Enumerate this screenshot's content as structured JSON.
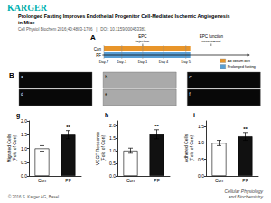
{
  "logo": {
    "text": "KARGER",
    "color": "#00b0b0"
  },
  "title": [
    "Prolonged Fasting Improves Endothelial Progenitor Cell-Mediated Ischemic Angiogenesis",
    "in Mice"
  ],
  "subtitle": "Cell Physiol Biochem 2016;40:4803-1706   |   DOI: 10.1159/000453381",
  "panels": [
    "A",
    "B"
  ],
  "schematic": {
    "rows": [
      "Con",
      "PF"
    ],
    "days": [
      "Day-7",
      "Day-1",
      "Day 1",
      "Day 4",
      "Day 5"
    ],
    "events": [
      [
        "EPC",
        "injection"
      ],
      [
        "EPC function",
        "assessment"
      ]
    ],
    "series": [
      {
        "name": "Ad libitum diet",
        "color": "#e8952a"
      },
      {
        "name": "Prolonged fasting",
        "color": "#5a9fd4"
      }
    ]
  },
  "images": [
    "a",
    "b",
    "c",
    "d",
    "e",
    "f"
  ],
  "chart_data": [
    {
      "type": "bar",
      "title": "g",
      "categories": [
        "Con",
        "PF"
      ],
      "values": [
        1.0,
        1.5
      ],
      "errors": [
        0.1,
        0.15
      ],
      "colors": [
        "#ffffff",
        "#111111"
      ],
      "ylabel": "Migrated Cells\n(Fold of Con)",
      "ylim": [
        0,
        2.0
      ],
      "yticks": [
        {
          "value": 0,
          "label": "0.0"
        },
        {
          "value": 0.5,
          "label": "0.5"
        },
        {
          "value": 1.0,
          "label": "1.0"
        },
        {
          "value": 1.5,
          "label": "1.5"
        },
        {
          "value": 2.0,
          "label": "2.0"
        }
      ],
      "grid": false,
      "annotations": [
        {
          "category": "PF",
          "text": "**"
        }
      ]
    },
    {
      "type": "bar",
      "title": "h",
      "categories": [
        "Con",
        "PF"
      ],
      "values": [
        1.0,
        1.65
      ],
      "errors": [
        0.1,
        0.18
      ],
      "colors": [
        "#ffffff",
        "#111111"
      ],
      "ylabel": "VEGF Response\n(Fold of Con)",
      "ylim": [
        0,
        2.18
      ],
      "yticks": [
        {
          "value": 0,
          "label": "0.0"
        },
        {
          "value": 0.5,
          "label": "0.5"
        },
        {
          "value": 1.0,
          "label": "1.0"
        },
        {
          "value": 1.5,
          "label": "1.5"
        },
        {
          "value": 2.0,
          "label": "2.0"
        }
      ],
      "grid": false,
      "annotations": [
        {
          "category": "PF",
          "text": "**"
        }
      ]
    },
    {
      "type": "bar",
      "title": "i",
      "categories": [
        "Con",
        "PF"
      ],
      "values": [
        1.0,
        1.2
      ],
      "errors": [
        0.08,
        0.12
      ],
      "colors": [
        "#ffffff",
        "#111111"
      ],
      "ylabel": "Adhered Cells\n(Fold of Con)",
      "ylim": [
        0,
        1.67
      ],
      "yticks": [
        {
          "value": 0,
          "label": "0.0"
        },
        {
          "value": 0.5,
          "label": "0.5"
        },
        {
          "value": 1.0,
          "label": "1.0"
        },
        {
          "value": 1.5,
          "label": "1.5"
        }
      ],
      "grid": false,
      "annotations": [
        {
          "category": "PF",
          "text": "**"
        }
      ]
    }
  ],
  "footer": "© 2016 S. Karger AG, Basel",
  "footer_right": [
    "Cellular Physiology",
    "and Biochemistry"
  ]
}
